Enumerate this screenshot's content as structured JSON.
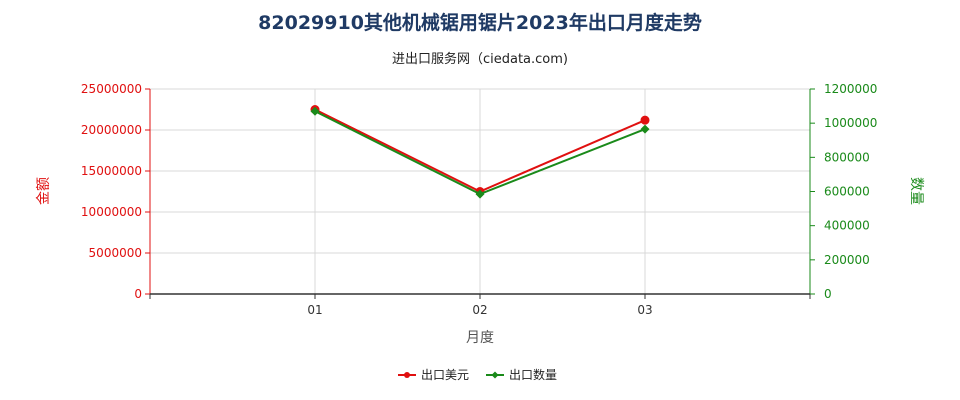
{
  "header": {
    "title": "82029910其他机械锯用锯片2023年出口月度走势",
    "subtitle": "进出口服务网（ciedata.com)"
  },
  "colors": {
    "value_series": "#e01010",
    "quantity_series": "#1a8a1a",
    "left_axis": "#e01010",
    "right_axis": "#1a8a1a",
    "grid": "#d8d8d8"
  },
  "chart_data": {
    "type": "line",
    "title": "82029910其他机械锯用锯片2023年出口月度走势",
    "subtitle": "进出口服务网（ciedata.com)",
    "xlabel": "月度",
    "ylabel_left": "金额",
    "ylabel_right": "数量",
    "categories": [
      "01",
      "02",
      "03"
    ],
    "ylim_left": [
      0,
      25000000
    ],
    "ylim_right": [
      0,
      1200000
    ],
    "yticks_left": [
      "0",
      "5000000",
      "10000000",
      "15000000",
      "20000000",
      "25000000"
    ],
    "yticks_right": [
      "0",
      "200000",
      "400000",
      "600000",
      "800000",
      "1000000",
      "1200000"
    ],
    "grid": true,
    "legend_position": "bottom",
    "series": [
      {
        "name": "出口美元",
        "axis": "left",
        "color": "#e01010",
        "marker": "circle",
        "values": [
          22500000,
          12500000,
          21200000
        ]
      },
      {
        "name": "出口数量",
        "axis": "right",
        "color": "#1a8a1a",
        "marker": "diamond",
        "values": [
          1070000,
          585000,
          965000
        ]
      }
    ]
  }
}
